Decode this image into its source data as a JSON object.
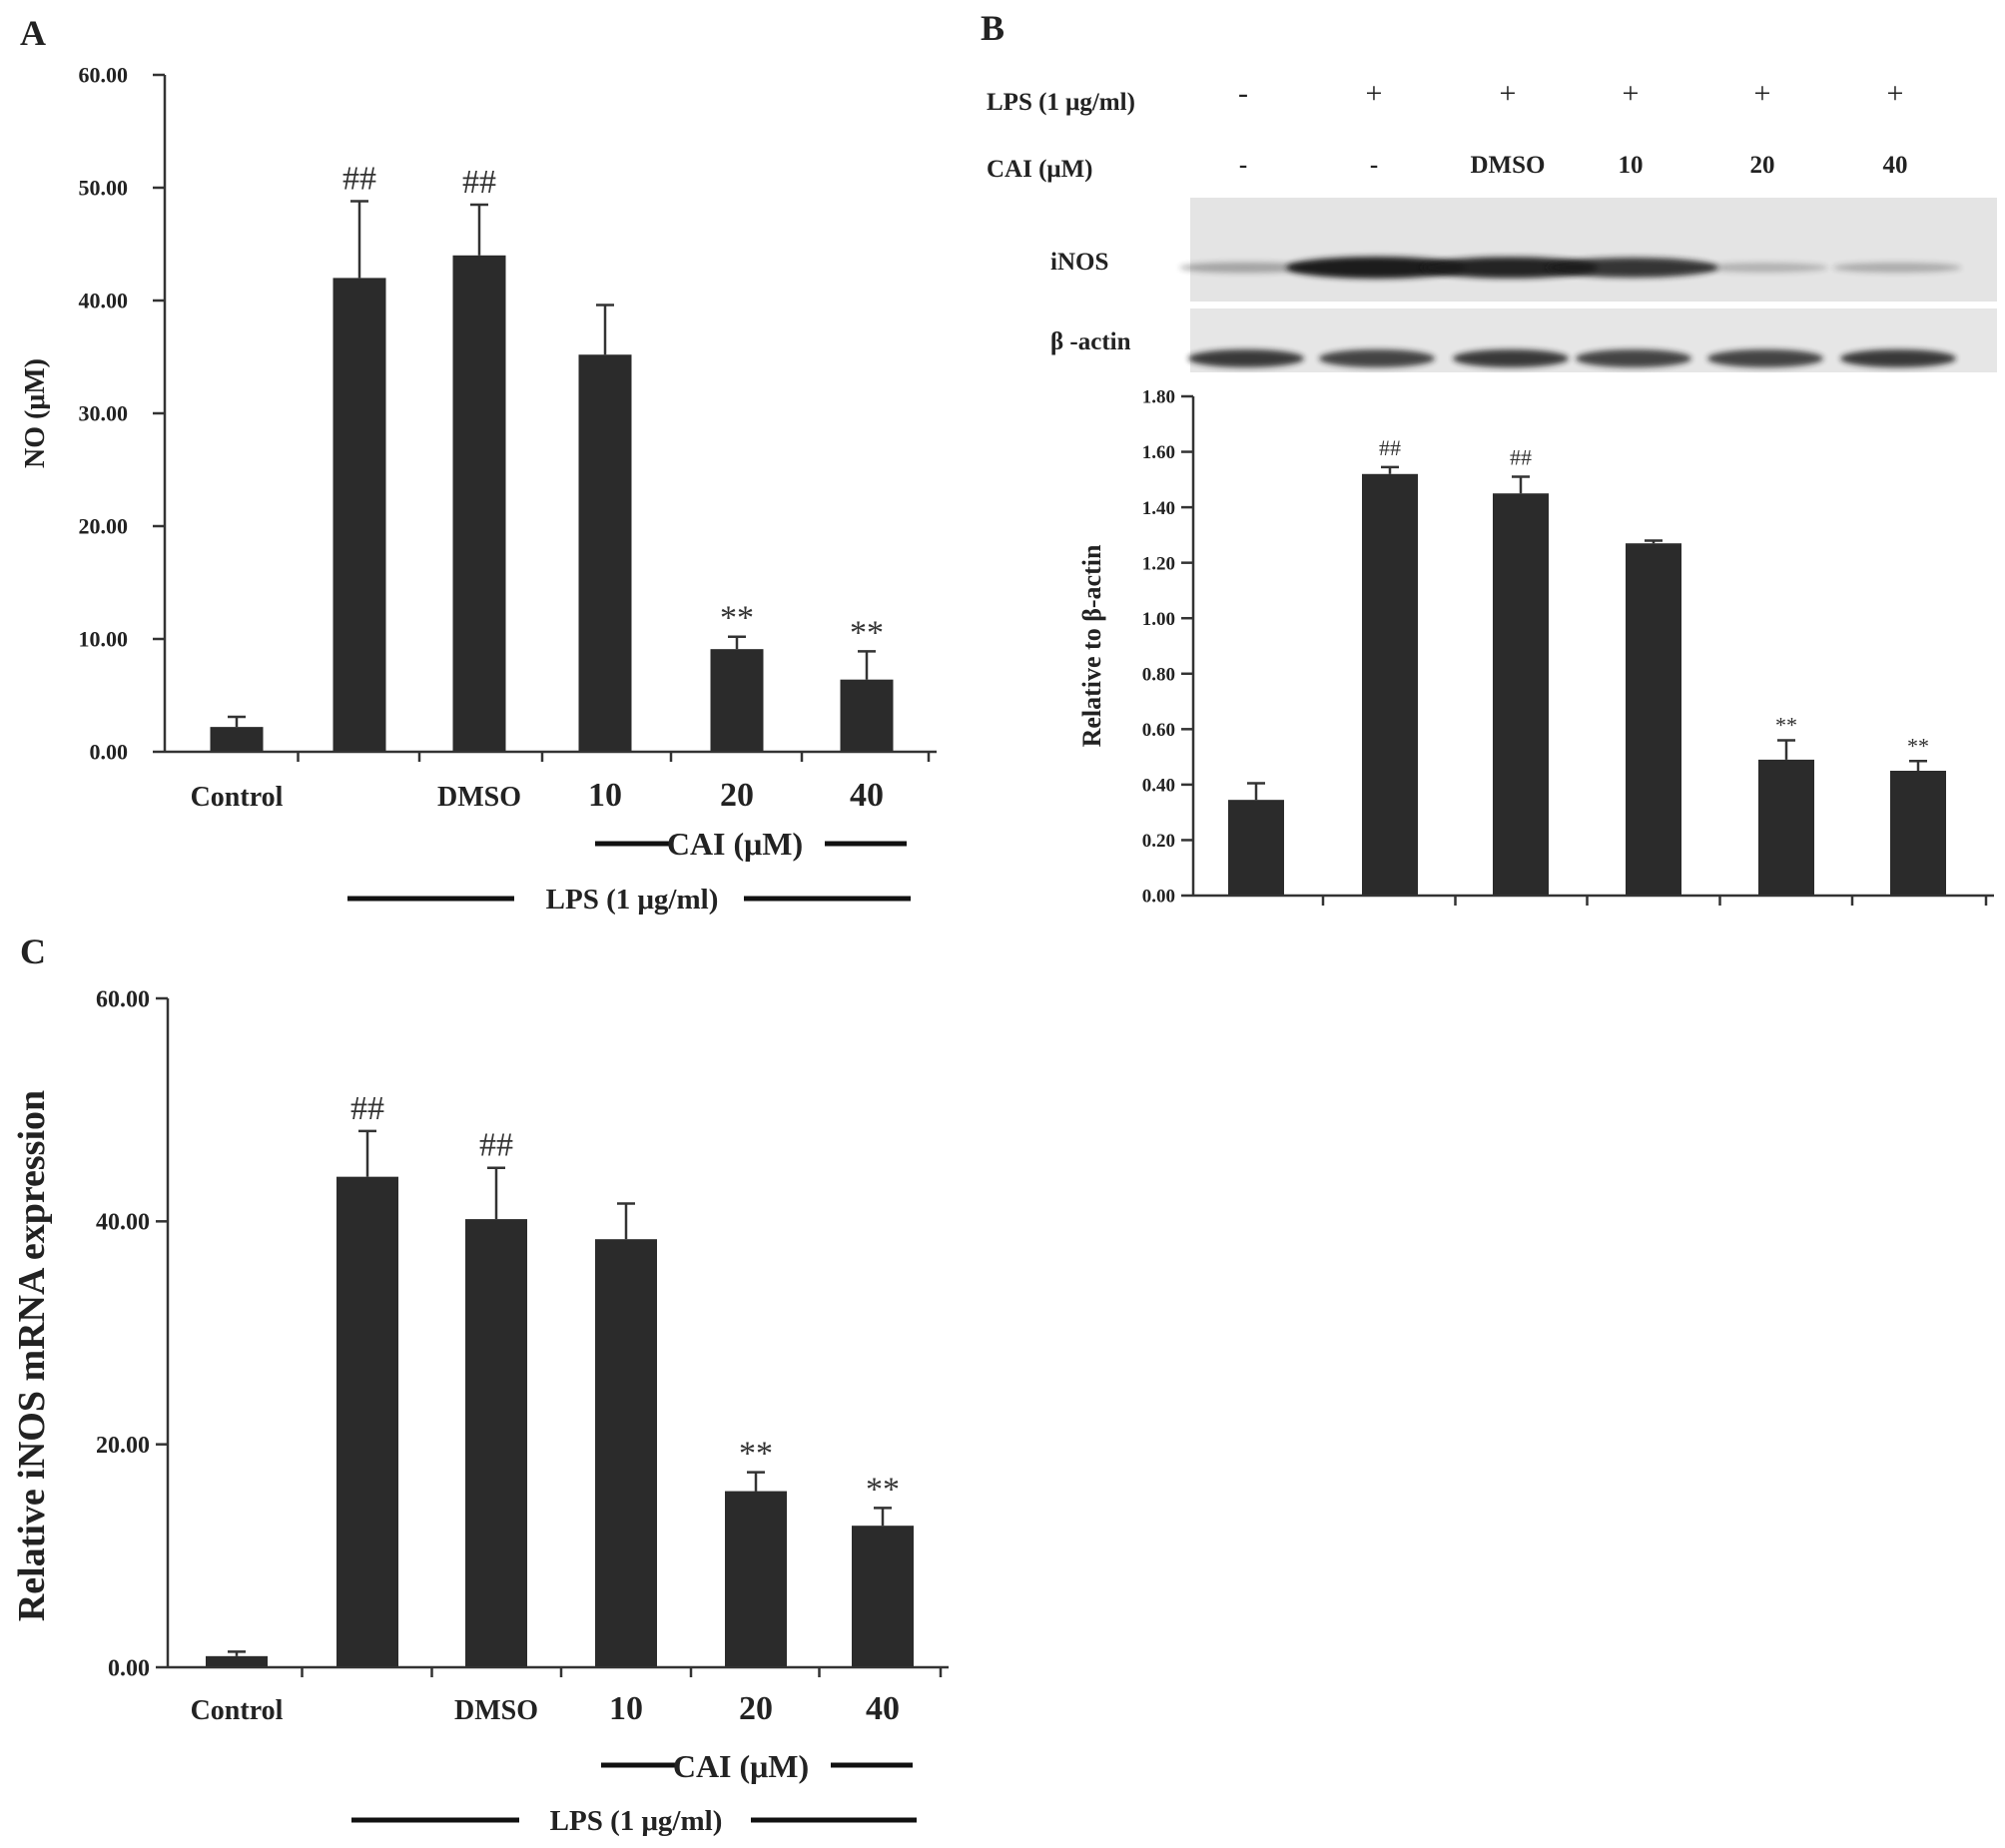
{
  "colors": {
    "bar": "#2b2b2b",
    "axis": "#333333",
    "text": "#222222",
    "blot_bg": "#e6e6e6",
    "band": "#1e1e1e"
  },
  "chart_data": [
    {
      "panel": "A",
      "type": "bar",
      "ylabel": "NO (μM)",
      "ylim": [
        0,
        60
      ],
      "yticks": [
        "0.00",
        "10.00",
        "20.00",
        "30.00",
        "40.00",
        "50.00",
        "60.00"
      ],
      "categories": [
        "Control",
        "",
        "DMSO",
        "10",
        "20",
        "40"
      ],
      "values": [
        2.2,
        42.0,
        44.0,
        35.2,
        9.1,
        6.4
      ],
      "errors": [
        0.9,
        6.8,
        4.5,
        4.4,
        1.1,
        2.5
      ],
      "annotations": [
        "",
        "##",
        "##",
        "",
        "**",
        "**"
      ],
      "group_labels": {
        "cai": "CAI (μM)",
        "lps": "LPS (1 μg/ml)"
      }
    },
    {
      "panel": "B",
      "type": "bar",
      "ylabel": "Relative to β-actin",
      "ylim": [
        0,
        1.8
      ],
      "yticks": [
        "0.00",
        "0.20",
        "0.40",
        "0.60",
        "0.80",
        "1.00",
        "1.20",
        "1.40",
        "1.60",
        "1.80"
      ],
      "categories": [
        "",
        "",
        "",
        "",
        "",
        ""
      ],
      "values": [
        0.345,
        1.52,
        1.45,
        1.27,
        0.49,
        0.45
      ],
      "errors": [
        0.06,
        0.025,
        0.06,
        0.01,
        0.07,
        0.035
      ],
      "annotations": [
        "",
        "##",
        "##",
        "",
        "**",
        "**"
      ],
      "blot": {
        "lps_label": "LPS (1 μg/ml)",
        "cai_label": "CAI (μM)",
        "lps_row": [
          "-",
          "+",
          "+",
          "+",
          "+",
          "+"
        ],
        "cai_row": [
          "-",
          "-",
          "DMSO",
          "10",
          "20",
          "40"
        ],
        "band_labels": [
          "iNOS",
          "β -actin"
        ],
        "inos_intensity": [
          0.2,
          1.0,
          0.95,
          0.85,
          0.12,
          0.15
        ],
        "actin_intensity": [
          0.85,
          0.8,
          0.85,
          0.8,
          0.8,
          0.85
        ]
      }
    },
    {
      "panel": "C",
      "type": "bar",
      "ylabel": "Relative iNOS mRNA expression",
      "ylim": [
        0,
        60
      ],
      "yticks": [
        "0.00",
        "20.00",
        "40.00",
        "60.00"
      ],
      "categories": [
        "Control",
        "",
        "DMSO",
        "10",
        "20",
        "40"
      ],
      "values": [
        1.0,
        44.0,
        40.2,
        38.4,
        15.8,
        12.7
      ],
      "errors": [
        0.4,
        4.1,
        4.6,
        3.2,
        1.7,
        1.6
      ],
      "annotations": [
        "",
        "##",
        "##",
        "",
        "**",
        "**"
      ],
      "group_labels": {
        "cai": "CAI (μM)",
        "lps": "LPS (1 μg/ml)"
      }
    }
  ],
  "panel_labels": [
    "A",
    "B",
    "C"
  ]
}
